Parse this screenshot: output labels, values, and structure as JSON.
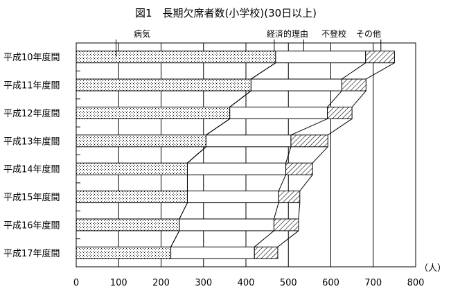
{
  "chart_data": {
    "type": "bar",
    "stacked": true,
    "orientation": "horizontal",
    "title": "図1　長期欠席者数(小学校)(30日以上)",
    "categories": [
      "平成10年度間",
      "平成11年度間",
      "平成12年度間",
      "平成13年度間",
      "平成14年度間",
      "平成15年度間",
      "平成16年度間",
      "平成17年度間"
    ],
    "series": [
      {
        "name": "病気",
        "pattern": "dots",
        "values": [
          470,
          412,
          362,
          306,
          262,
          262,
          243,
          223
        ]
      },
      {
        "name": "経済的理由",
        "pattern": "white",
        "values": [
          0,
          0,
          0,
          0,
          0,
          0,
          0,
          0
        ]
      },
      {
        "name": "不登校",
        "pattern": "white",
        "values": [
          212,
          214,
          230,
          200,
          232,
          215,
          223,
          197
        ]
      },
      {
        "name": "その他",
        "pattern": "hatch",
        "values": [
          68,
          57,
          58,
          87,
          63,
          50,
          58,
          55
        ]
      }
    ],
    "unit_label": "（人）",
    "xlim": [
      0,
      800
    ],
    "xticks": [
      0,
      100,
      200,
      300,
      400,
      500,
      600,
      700,
      800
    ],
    "grid": "vertical"
  }
}
